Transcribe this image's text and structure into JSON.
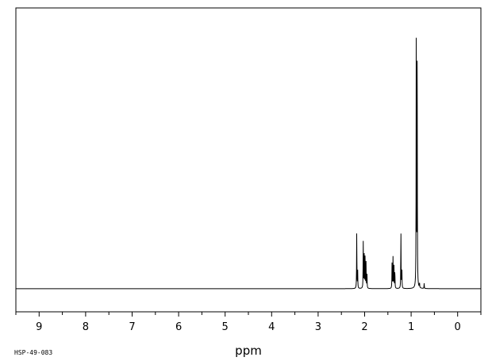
{
  "sample_id": "HSP-49-083",
  "chart_data": {
    "type": "line",
    "xlabel": "ppm",
    "ylabel": "",
    "title": "",
    "x_reversed": true,
    "xlim": [
      9.5,
      -0.5
    ],
    "major_ticks": [
      9,
      8,
      7,
      6,
      5,
      4,
      3,
      2,
      1,
      0
    ],
    "tick_labels": [
      "9",
      "8",
      "7",
      "6",
      "5",
      "4",
      "3",
      "2",
      "1",
      "0"
    ],
    "minor_tick_step": 0.5,
    "baseline_intensity": 0,
    "ylim": [
      -0.09,
      1.0
    ],
    "peaks": [
      {
        "ppm": 2.17,
        "intensity": 0.22
      },
      {
        "ppm": 2.15,
        "intensity": 0.07
      },
      {
        "ppm": 2.03,
        "intensity": 0.18
      },
      {
        "ppm": 2.01,
        "intensity": 0.15
      },
      {
        "ppm": 1.99,
        "intensity": 0.14
      },
      {
        "ppm": 1.97,
        "intensity": 0.1
      },
      {
        "ppm": 1.95,
        "intensity": 0.06
      },
      {
        "ppm": 1.41,
        "intensity": 0.11
      },
      {
        "ppm": 1.39,
        "intensity": 0.12
      },
      {
        "ppm": 1.37,
        "intensity": 0.1
      },
      {
        "ppm": 1.35,
        "intensity": 0.07
      },
      {
        "ppm": 1.22,
        "intensity": 0.22
      },
      {
        "ppm": 1.2,
        "intensity": 0.09
      },
      {
        "ppm": 0.89,
        "intensity": 1.0
      },
      {
        "ppm": 0.87,
        "intensity": 0.88
      },
      {
        "ppm": 0.82,
        "intensity": 0.02
      },
      {
        "ppm": 0.72,
        "intensity": 0.02
      }
    ]
  }
}
